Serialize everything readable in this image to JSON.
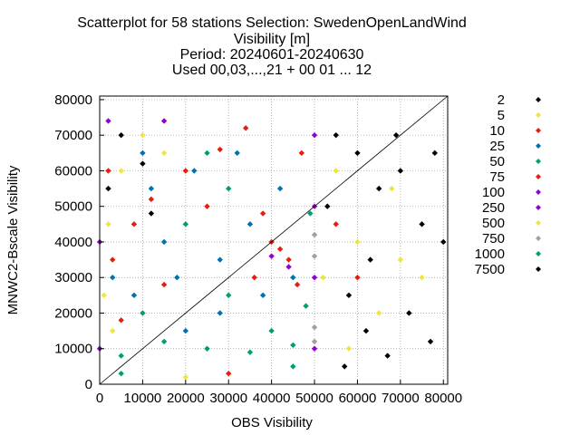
{
  "chart_data": {
    "type": "scatter",
    "title_lines": [
      "Scatterplot for   58 stations Selection: SwedenOpenLandWind",
      "Visibility [m]",
      "Period: 20240601-20240630",
      "Used 00,03,...,21 + 00 01 ... 12"
    ],
    "xlabel": "OBS Visibility",
    "ylabel": "MNWC2-Bscale Visibility",
    "xlim": [
      0,
      81000
    ],
    "ylim": [
      0,
      81000
    ],
    "xticks": [
      0,
      10000,
      20000,
      30000,
      40000,
      50000,
      60000,
      70000,
      80000
    ],
    "yticks": [
      0,
      10000,
      20000,
      30000,
      40000,
      50000,
      60000,
      70000,
      80000
    ],
    "grid": true,
    "diagonal_line": true,
    "legend_placement": "right",
    "legend": [
      {
        "label": "2",
        "color": "#000000"
      },
      {
        "label": "5",
        "color": "#f0e442"
      },
      {
        "label": "10",
        "color": "#e51e10"
      },
      {
        "label": "25",
        "color": "#0072b2"
      },
      {
        "label": "50",
        "color": "#009e73"
      },
      {
        "label": "75",
        "color": "#e51e10"
      },
      {
        "label": "100",
        "color": "#9400d3"
      },
      {
        "label": "250",
        "color": "#9400d3"
      },
      {
        "label": "500",
        "color": "#f0e442"
      },
      {
        "label": "750",
        "color": "#a0a0a0"
      },
      {
        "label": "1000",
        "color": "#009e73"
      },
      {
        "label": "7500",
        "color": "#000000"
      }
    ],
    "series": [
      {
        "name": "1000",
        "color": "#009e73",
        "points": [
          [
            5000,
            8000
          ],
          [
            15000,
            12000
          ],
          [
            25000,
            10000
          ],
          [
            35000,
            9000
          ],
          [
            45000,
            11000
          ],
          [
            10000,
            20000
          ],
          [
            30000,
            25000
          ],
          [
            48000,
            22000
          ],
          [
            20000,
            45000
          ],
          [
            40000,
            15000
          ],
          [
            30000,
            55000
          ],
          [
            25000,
            65000
          ],
          [
            45000,
            5000
          ],
          [
            5000,
            3000
          ],
          [
            49000,
            48000
          ]
        ]
      },
      {
        "name": "25",
        "color": "#0072b2",
        "points": [
          [
            8000,
            25000
          ],
          [
            18000,
            30000
          ],
          [
            28000,
            35000
          ],
          [
            38000,
            25000
          ],
          [
            12000,
            55000
          ],
          [
            22000,
            60000
          ],
          [
            35000,
            45000
          ],
          [
            45000,
            30000
          ],
          [
            3000,
            30000
          ],
          [
            20000,
            15000
          ],
          [
            32000,
            65000
          ],
          [
            15000,
            40000
          ],
          [
            42000,
            55000
          ],
          [
            28000,
            20000
          ],
          [
            10000,
            65000
          ]
        ]
      },
      {
        "name": "10",
        "color": "#e51e10",
        "points": [
          [
            3000,
            35000
          ],
          [
            8000,
            45000
          ],
          [
            12000,
            52000
          ],
          [
            20000,
            60000
          ],
          [
            28000,
            66000
          ],
          [
            34000,
            72000
          ],
          [
            40000,
            40000
          ],
          [
            44000,
            35000
          ],
          [
            46000,
            28000
          ],
          [
            38000,
            48000
          ],
          [
            5000,
            18000
          ],
          [
            15000,
            28000
          ],
          [
            47000,
            65000
          ],
          [
            42000,
            38000
          ],
          [
            36000,
            30000
          ],
          [
            55000,
            45000
          ],
          [
            60000,
            30000
          ],
          [
            25000,
            50000
          ],
          [
            2000,
            60000
          ],
          [
            30000,
            3000
          ]
        ]
      },
      {
        "name": "5",
        "color": "#f0e442",
        "points": [
          [
            2000,
            45000
          ],
          [
            5000,
            60000
          ],
          [
            3000,
            15000
          ],
          [
            10000,
            70000
          ],
          [
            15000,
            65000
          ],
          [
            55000,
            60000
          ],
          [
            60000,
            40000
          ],
          [
            65000,
            20000
          ],
          [
            52000,
            30000
          ],
          [
            70000,
            35000
          ],
          [
            58000,
            10000
          ],
          [
            68000,
            55000
          ],
          [
            75000,
            30000
          ],
          [
            1000,
            25000
          ],
          [
            20000,
            2000
          ]
        ]
      },
      {
        "name": "100",
        "color": "#9400d3",
        "points": [
          [
            50000,
            70000
          ],
          [
            50000,
            50000
          ],
          [
            50000,
            30000
          ],
          [
            50000,
            10000
          ],
          [
            40000,
            36000
          ],
          [
            44000,
            33000
          ],
          [
            2000,
            74000
          ],
          [
            15000,
            74000
          ],
          [
            0,
            40000
          ],
          [
            0,
            10000
          ]
        ]
      },
      {
        "name": "750",
        "color": "#a0a0a0",
        "points": [
          [
            50000,
            42000
          ],
          [
            50000,
            36000
          ],
          [
            50000,
            16000
          ],
          [
            50000,
            12000
          ]
        ]
      },
      {
        "name": "7500",
        "color": "#000000",
        "points": [
          [
            55000,
            70000
          ],
          [
            60000,
            65000
          ],
          [
            65000,
            55000
          ],
          [
            70000,
            60000
          ],
          [
            75000,
            45000
          ],
          [
            80000,
            40000
          ],
          [
            58000,
            25000
          ],
          [
            62000,
            15000
          ],
          [
            67000,
            8000
          ],
          [
            72000,
            20000
          ],
          [
            78000,
            65000
          ],
          [
            53000,
            50000
          ],
          [
            57000,
            5000
          ],
          [
            63000,
            35000
          ],
          [
            77000,
            12000
          ],
          [
            5000,
            70000
          ],
          [
            10000,
            62000
          ],
          [
            2000,
            55000
          ],
          [
            12000,
            48000
          ],
          [
            69000,
            70000
          ]
        ]
      }
    ]
  }
}
